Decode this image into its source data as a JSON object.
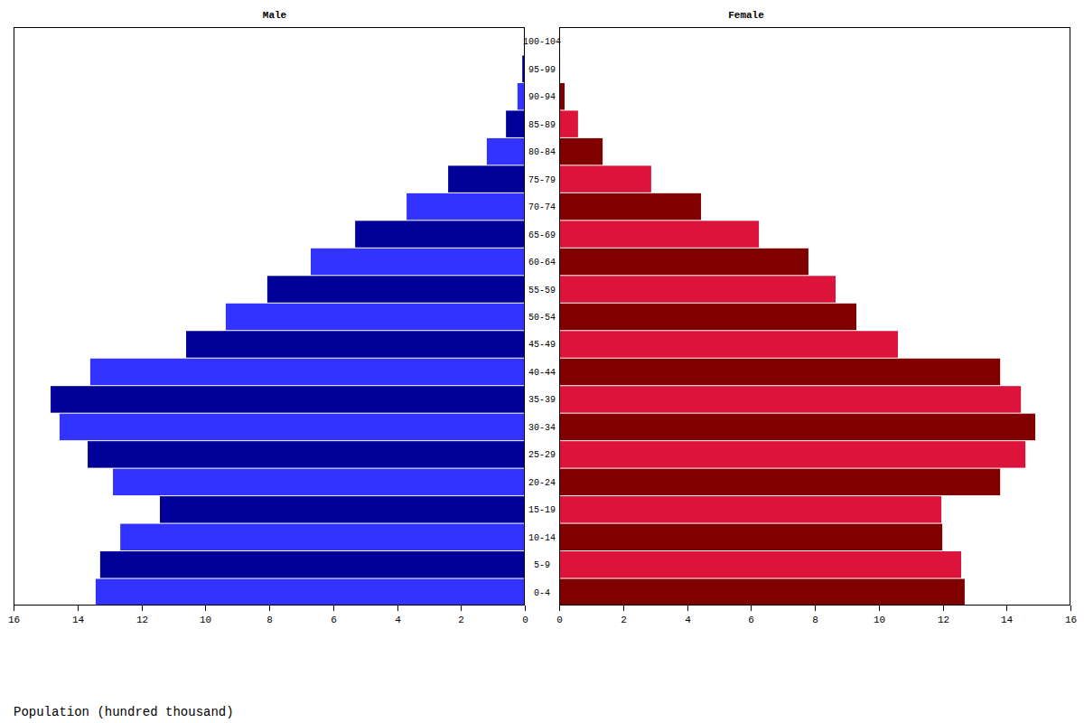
{
  "chart_data": {
    "type": "bar",
    "orientation": "horizontal",
    "x_label": "Population (hundred thousand)",
    "categories": [
      "0-4",
      "5-9",
      "10-14",
      "15-19",
      "20-24",
      "25-29",
      "30-34",
      "35-39",
      "40-44",
      "45-49",
      "50-54",
      "55-59",
      "60-64",
      "65-69",
      "70-74",
      "75-79",
      "80-84",
      "85-89",
      "90-94",
      "95-99",
      "100-104"
    ],
    "series": [
      {
        "name": "Male",
        "colors": [
          "#3333ff",
          "#000099",
          "#3333ff",
          "#000099",
          "#3333ff",
          "#000099",
          "#3333ff",
          "#000099",
          "#3333ff",
          "#000099",
          "#3333ff",
          "#000099",
          "#3333ff",
          "#000099",
          "#3333ff",
          "#000099",
          "#3333ff",
          "#000099",
          "#3333ff",
          "#000099",
          "#3333ff"
        ],
        "values": [
          13.43,
          13.29,
          12.66,
          11.42,
          12.89,
          13.68,
          14.56,
          14.84,
          13.6,
          10.6,
          9.36,
          8.06,
          6.7,
          5.31,
          3.7,
          2.4,
          1.19,
          0.59,
          0.23,
          0.08,
          0.03
        ]
      },
      {
        "name": "Female",
        "colors": [
          "#800000",
          "#dc143c",
          "#800000",
          "#dc143c",
          "#800000",
          "#dc143c",
          "#800000",
          "#dc143c",
          "#800000",
          "#dc143c",
          "#800000",
          "#dc143c",
          "#800000",
          "#dc143c",
          "#800000",
          "#dc143c",
          "#800000",
          "#dc143c",
          "#800000",
          "#dc143c",
          "#800000"
        ],
        "values": [
          12.69,
          12.58,
          11.99,
          11.96,
          13.8,
          14.59,
          14.9,
          14.45,
          13.8,
          10.6,
          9.3,
          8.65,
          7.8,
          6.25,
          4.44,
          2.88,
          1.36,
          0.59,
          0.17,
          0.03,
          0.02
        ]
      }
    ],
    "xlim": [
      0,
      16
    ],
    "xticks": [
      0,
      2,
      4,
      6,
      8,
      10,
      12,
      14,
      16
    ],
    "grid": false
  }
}
